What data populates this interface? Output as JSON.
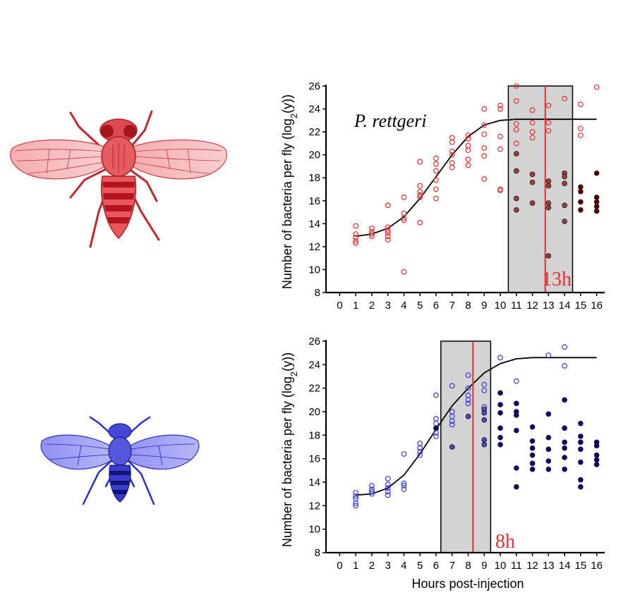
{
  "figure": {
    "xlabel": "Hours post-injection",
    "ylabel_main": "Number of bacteria per fly (log",
    "ylabel_sub": "2",
    "ylabel_tail": "(y))"
  },
  "illustrations": [
    {
      "name": "red-fly",
      "color": "#d9363b"
    },
    {
      "name": "blue-fly",
      "color": "#2b2fc9"
    }
  ],
  "chart_data": [
    {
      "type": "scatter",
      "title": "",
      "species_label": "P. rettgeri",
      "cutoff_label": "13h",
      "cutoff_hour": 12.8,
      "shaded_range": [
        10.5,
        14.5
      ],
      "xlim": [
        -0.5,
        16.5
      ],
      "ylim": [
        8,
        26
      ],
      "xticks": [
        0,
        1,
        2,
        3,
        4,
        5,
        6,
        7,
        8,
        9,
        10,
        11,
        12,
        13,
        14,
        15,
        16
      ],
      "yticks": [
        8,
        10,
        12,
        14,
        16,
        18,
        20,
        22,
        24,
        26
      ],
      "colors": {
        "open": "#e0302f",
        "filled": "#4a0a0a",
        "fill_inside": "#8a4a4a",
        "cutoff": "#e0302f",
        "curve": "#000000"
      },
      "growth_curve": [
        [
          1,
          12.9
        ],
        [
          2,
          13.1
        ],
        [
          3,
          13.6
        ],
        [
          4,
          14.6
        ],
        [
          5,
          16.2
        ],
        [
          6,
          18.1
        ],
        [
          7,
          20.0
        ],
        [
          8,
          21.6
        ],
        [
          9,
          22.6
        ],
        [
          10,
          23.0
        ],
        [
          11,
          23.1
        ],
        [
          12,
          23.1
        ],
        [
          13,
          23.1
        ],
        [
          14,
          23.1
        ],
        [
          15,
          23.1
        ],
        [
          16,
          23.1
        ]
      ],
      "series": [
        {
          "name": "live",
          "style": "open",
          "points": [
            [
              1,
              13.8
            ],
            [
              1,
              13.1
            ],
            [
              1,
              12.8
            ],
            [
              1,
              12.5
            ],
            [
              1,
              12.3
            ],
            [
              2,
              13.6
            ],
            [
              2,
              13.3
            ],
            [
              2,
              13.1
            ],
            [
              2,
              12.9
            ],
            [
              3,
              15.6
            ],
            [
              3,
              13.7
            ],
            [
              3,
              13.4
            ],
            [
              3,
              13.2
            ],
            [
              3,
              12.9
            ],
            [
              3,
              12.6
            ],
            [
              4,
              16.3
            ],
            [
              4,
              14.9
            ],
            [
              4,
              14.5
            ],
            [
              4,
              14.3
            ],
            [
              4,
              9.8
            ],
            [
              5,
              19.4
            ],
            [
              5,
              17.3
            ],
            [
              5,
              16.8
            ],
            [
              5,
              16.5
            ],
            [
              5,
              16.3
            ],
            [
              5,
              14.1
            ],
            [
              6,
              19.7
            ],
            [
              6,
              19.2
            ],
            [
              6,
              18.6
            ],
            [
              6,
              17.8
            ],
            [
              6,
              17.0
            ],
            [
              6,
              16.2
            ],
            [
              7,
              21.5
            ],
            [
              7,
              21.1
            ],
            [
              7,
              20.3
            ],
            [
              7,
              20.0
            ],
            [
              7,
              19.3
            ],
            [
              7,
              18.9
            ],
            [
              8,
              21.7
            ],
            [
              8,
              21.4
            ],
            [
              8,
              20.8
            ],
            [
              8,
              20.4
            ],
            [
              8,
              19.6
            ],
            [
              8,
              19.1
            ],
            [
              9,
              24.0
            ],
            [
              9,
              22.6
            ],
            [
              9,
              21.8
            ],
            [
              9,
              20.6
            ],
            [
              9,
              19.9
            ],
            [
              9,
              17.9
            ],
            [
              10,
              24.3
            ],
            [
              10,
              24.0
            ],
            [
              10,
              21.6
            ],
            [
              10,
              20.5
            ],
            [
              10,
              17.0
            ],
            [
              10,
              16.9
            ],
            [
              11,
              26.0
            ],
            [
              11,
              24.7
            ],
            [
              11,
              22.7
            ],
            [
              11,
              22.2
            ],
            [
              11,
              21.0
            ],
            [
              12,
              23.9
            ],
            [
              12,
              22.8
            ],
            [
              12,
              22.0
            ],
            [
              12,
              21.5
            ],
            [
              13,
              24.3
            ],
            [
              13,
              22.8
            ],
            [
              13,
              22.1
            ],
            [
              14,
              24.9
            ],
            [
              15,
              24.4
            ],
            [
              15,
              22.3
            ],
            [
              15,
              21.7
            ],
            [
              16,
              25.9
            ]
          ]
        },
        {
          "name": "dead",
          "style": "filled",
          "points": [
            [
              11,
              20.1
            ],
            [
              11,
              18.6
            ],
            [
              11,
              16.2
            ],
            [
              11,
              15.2
            ],
            [
              12,
              18.3
            ],
            [
              12,
              17.6
            ],
            [
              12,
              15.8
            ],
            [
              13,
              17.7
            ],
            [
              13,
              17.3
            ],
            [
              13,
              15.8
            ],
            [
              13,
              15.4
            ],
            [
              13,
              11.2
            ],
            [
              14,
              18.4
            ],
            [
              14,
              18.1
            ],
            [
              14,
              17.5
            ],
            [
              14,
              15.6
            ],
            [
              14,
              14.2
            ],
            [
              15,
              17.2
            ],
            [
              15,
              16.8
            ],
            [
              15,
              15.9
            ],
            [
              15,
              15.2
            ],
            [
              16,
              18.4
            ],
            [
              16,
              16.3
            ],
            [
              16,
              15.9
            ],
            [
              16,
              15.5
            ],
            [
              16,
              15.1
            ]
          ]
        }
      ]
    },
    {
      "type": "scatter",
      "title": "",
      "cutoff_label": "8h",
      "cutoff_hour": 8.3,
      "shaded_range": [
        6.3,
        9.4
      ],
      "xlim": [
        -0.5,
        16.5
      ],
      "ylim": [
        8,
        26
      ],
      "xticks": [
        0,
        1,
        2,
        3,
        4,
        5,
        6,
        7,
        8,
        9,
        10,
        11,
        12,
        13,
        14,
        15,
        16
      ],
      "yticks": [
        8,
        10,
        12,
        14,
        16,
        18,
        20,
        22,
        24,
        26
      ],
      "colors": {
        "open": "#3a3ad6",
        "filled": "#0c0c5a",
        "fill_inside": "#4f4fae",
        "cutoff": "#e0302f",
        "curve": "#000000"
      },
      "growth_curve": [
        [
          1,
          12.9
        ],
        [
          2,
          13.0
        ],
        [
          3,
          13.5
        ],
        [
          4,
          14.6
        ],
        [
          5,
          16.4
        ],
        [
          6,
          18.5
        ],
        [
          7,
          20.5
        ],
        [
          8,
          22.0
        ],
        [
          9,
          23.3
        ],
        [
          10,
          24.1
        ],
        [
          11,
          24.5
        ],
        [
          12,
          24.6
        ],
        [
          13,
          24.6
        ],
        [
          14,
          24.6
        ],
        [
          15,
          24.6
        ],
        [
          16,
          24.6
        ]
      ],
      "series": [
        {
          "name": "live",
          "style": "open",
          "points": [
            [
              1,
              13.1
            ],
            [
              1,
              12.8
            ],
            [
              1,
              12.6
            ],
            [
              1,
              12.2
            ],
            [
              1,
              12.0
            ],
            [
              2,
              13.7
            ],
            [
              2,
              13.4
            ],
            [
              2,
              13.2
            ],
            [
              2,
              13.0
            ],
            [
              3,
              14.3
            ],
            [
              3,
              13.8
            ],
            [
              3,
              13.5
            ],
            [
              3,
              13.2
            ],
            [
              3,
              12.9
            ],
            [
              4,
              16.4
            ],
            [
              4,
              13.9
            ],
            [
              4,
              13.7
            ],
            [
              4,
              13.4
            ],
            [
              5,
              17.3
            ],
            [
              5,
              16.9
            ],
            [
              5,
              16.6
            ],
            [
              5,
              16.3
            ],
            [
              6,
              21.4
            ],
            [
              6,
              19.4
            ],
            [
              6,
              19.0
            ],
            [
              6,
              18.6
            ],
            [
              6,
              18.2
            ],
            [
              6,
              17.9
            ],
            [
              7,
              22.2
            ],
            [
              7,
              20.0
            ],
            [
              7,
              19.6
            ],
            [
              7,
              19.2
            ],
            [
              7,
              18.9
            ],
            [
              8,
              23.1
            ],
            [
              8,
              22.0
            ],
            [
              8,
              21.4
            ],
            [
              8,
              21.0
            ],
            [
              8,
              20.7
            ],
            [
              9,
              22.3
            ],
            [
              9,
              21.8
            ],
            [
              9,
              20.4
            ],
            [
              10,
              24.6
            ],
            [
              11,
              22.6
            ],
            [
              13,
              24.8
            ],
            [
              14,
              25.5
            ],
            [
              14,
              23.9
            ]
          ]
        },
        {
          "name": "dead",
          "style": "filled",
          "points": [
            [
              6,
              18.6
            ],
            [
              7,
              17.0
            ],
            [
              8,
              19.6
            ],
            [
              9,
              20.2
            ],
            [
              9,
              19.9
            ],
            [
              9,
              19.3
            ],
            [
              9,
              17.6
            ],
            [
              9,
              17.2
            ],
            [
              10,
              21.6
            ],
            [
              10,
              20.6
            ],
            [
              10,
              19.9
            ],
            [
              10,
              18.6
            ],
            [
              10,
              17.8
            ],
            [
              10,
              17.2
            ],
            [
              11,
              20.7
            ],
            [
              11,
              20.0
            ],
            [
              11,
              19.7
            ],
            [
              11,
              18.4
            ],
            [
              11,
              15.2
            ],
            [
              11,
              13.6
            ],
            [
              12,
              18.7
            ],
            [
              12,
              17.5
            ],
            [
              12,
              16.9
            ],
            [
              12,
              16.3
            ],
            [
              12,
              15.6
            ],
            [
              12,
              15.1
            ],
            [
              13,
              19.8
            ],
            [
              13,
              17.8
            ],
            [
              13,
              16.8
            ],
            [
              13,
              15.8
            ],
            [
              13,
              15.1
            ],
            [
              14,
              21.0
            ],
            [
              14,
              18.6
            ],
            [
              14,
              17.4
            ],
            [
              14,
              16.9
            ],
            [
              14,
              16.1
            ],
            [
              14,
              15.1
            ],
            [
              15,
              19.0
            ],
            [
              15,
              17.9
            ],
            [
              15,
              17.4
            ],
            [
              15,
              16.8
            ],
            [
              15,
              15.7
            ],
            [
              15,
              14.2
            ],
            [
              15,
              13.6
            ],
            [
              16,
              17.4
            ],
            [
              16,
              17.1
            ],
            [
              16,
              16.3
            ],
            [
              16,
              15.9
            ],
            [
              16,
              15.5
            ]
          ]
        }
      ]
    }
  ]
}
